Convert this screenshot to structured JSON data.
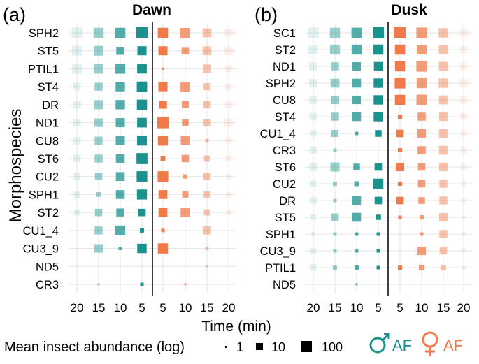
{
  "figure": {
    "y_axis_label": "Morphospecies",
    "x_axis_label": "Time (min)",
    "size_legend": {
      "title": "Mean insect abundance (log)",
      "labels": [
        "1",
        "10",
        "100"
      ],
      "values": [
        1,
        10,
        100
      ]
    },
    "color_legend": {
      "male_label": "AF",
      "female_label": "AF",
      "male_color": "#1a938f",
      "female_color": "#f07a4a"
    }
  },
  "chart_data": [
    {
      "type": "scatter",
      "panel": "(a)",
      "title": "Dawn",
      "x_ticks": [
        "20",
        "15",
        "10",
        "5",
        "5",
        "10",
        "15",
        "20"
      ],
      "series_by_half": [
        "male",
        "male",
        "male",
        "male",
        "female",
        "female",
        "female",
        "female"
      ],
      "species": [
        "SPH2",
        "ST5",
        "PTIL1",
        "ST4",
        "DR",
        "ND1",
        "CU8",
        "ST6",
        "CU2",
        "SPH1",
        "ST2",
        "CU1_4",
        "CU3_9",
        "ND5",
        "CR3"
      ],
      "values": [
        [
          80,
          60,
          60,
          100,
          60,
          50,
          30,
          20
        ],
        [
          50,
          50,
          20,
          35,
          35,
          15,
          30,
          30
        ],
        [
          50,
          50,
          55,
          45,
          1,
          0,
          25,
          10
        ],
        [
          15,
          20,
          40,
          65,
          35,
          45,
          12,
          10
        ],
        [
          20,
          35,
          40,
          60,
          20,
          12,
          15,
          15
        ],
        [
          15,
          25,
          35,
          45,
          100,
          10,
          15,
          25
        ],
        [
          15,
          20,
          35,
          50,
          55,
          35,
          2,
          8
        ],
        [
          15,
          20,
          30,
          90,
          4,
          15,
          8,
          8
        ],
        [
          12,
          15,
          30,
          75,
          75,
          3,
          15,
          5
        ],
        [
          10,
          4,
          30,
          55,
          30,
          8,
          10,
          6
        ],
        [
          8,
          15,
          20,
          15,
          30,
          40,
          8,
          5
        ],
        [
          0,
          20,
          50,
          3,
          2,
          0,
          20,
          0
        ],
        [
          0,
          25,
          2,
          40,
          60,
          0,
          2,
          0
        ],
        [
          0,
          0,
          0,
          0,
          0,
          0,
          1,
          0
        ],
        [
          0,
          1,
          0,
          2,
          0,
          1,
          0,
          0
        ]
      ]
    },
    {
      "type": "scatter",
      "panel": "(b)",
      "title": "Dusk",
      "x_ticks": [
        "20",
        "15",
        "10",
        "5",
        "5",
        "10",
        "15",
        "20"
      ],
      "series_by_half": [
        "male",
        "male",
        "male",
        "male",
        "female",
        "female",
        "female",
        "female"
      ],
      "species": [
        "SC1",
        "ST2",
        "ND1",
        "SPH2",
        "CU8",
        "ST4",
        "CU1_4",
        "CR3",
        "ST6",
        "CU2",
        "DR",
        "ST5",
        "SPH1",
        "CU3_9",
        "PTIL1",
        "ND5"
      ],
      "values": [
        [
          80,
          60,
          65,
          100,
          100,
          75,
          40,
          20
        ],
        [
          40,
          55,
          55,
          60,
          60,
          50,
          35,
          12
        ],
        [
          25,
          20,
          25,
          30,
          55,
          75,
          35,
          15
        ],
        [
          25,
          30,
          30,
          40,
          75,
          55,
          40,
          20
        ],
        [
          20,
          25,
          25,
          40,
          60,
          70,
          30,
          15
        ],
        [
          15,
          20,
          30,
          40,
          3,
          20,
          25,
          10
        ],
        [
          10,
          12,
          2,
          10,
          15,
          25,
          30,
          8
        ],
        [
          15,
          2,
          0,
          0,
          3,
          20,
          30,
          8
        ],
        [
          20,
          35,
          10,
          15,
          25,
          15,
          25,
          8
        ],
        [
          8,
          3,
          4,
          60,
          3,
          15,
          20,
          5
        ],
        [
          12,
          2,
          30,
          15,
          15,
          10,
          20,
          5
        ],
        [
          6,
          15,
          30,
          5,
          2,
          3,
          25,
          3
        ],
        [
          3,
          2,
          2,
          2,
          0,
          2,
          20,
          3
        ],
        [
          6,
          2,
          2,
          2,
          0,
          25,
          15,
          3
        ],
        [
          10,
          3,
          3,
          2,
          3,
          6,
          5,
          3
        ],
        [
          0,
          0,
          1,
          0,
          0,
          0,
          0,
          0
        ]
      ]
    }
  ]
}
